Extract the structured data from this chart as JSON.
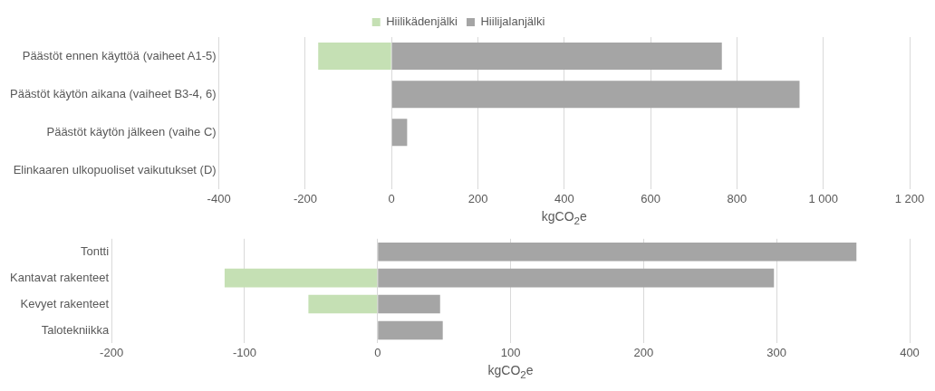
{
  "chart_data": [
    {
      "type": "bar",
      "orientation": "horizontal",
      "stacked": true,
      "categories": [
        "Päästöt ennen käyttöä (vaiheet A1-5)",
        "Päästöt käytön aikana (vaiheet B3-4, 6)",
        "Päästöt käytön jälkeen (vaihe C)",
        "Elinkaaren ulkopuoliset vaikutukset (D)"
      ],
      "series": [
        {
          "name": "Hiilikädenjälki",
          "color": "#c5e0b4",
          "values": [
            -170,
            null,
            null,
            null
          ]
        },
        {
          "name": "Hiilijalanjälki",
          "color": "#a5a5a5",
          "values": [
            765,
            945,
            36,
            null
          ]
        }
      ],
      "xlim": [
        -400,
        1200
      ],
      "xticks": [
        -400,
        -200,
        0,
        200,
        400,
        600,
        800,
        {
          "value": 1000,
          "label": "1 000"
        },
        {
          "value": 1200,
          "label": "1 200"
        }
      ],
      "xlabel": "kgCO$_{2}$e",
      "grid": "x",
      "legend": "top"
    },
    {
      "type": "bar",
      "orientation": "horizontal",
      "stacked": true,
      "categories": [
        "Tontti",
        "Kantavat rakenteet",
        "Kevyet rakenteet",
        "Talotekniikka"
      ],
      "series": [
        {
          "color": "#c5e0b4",
          "values": [
            null,
            -115,
            -52,
            null
          ]
        },
        {
          "color": "#a5a5a5",
          "values": [
            360,
            298,
            47,
            49
          ]
        }
      ],
      "xlim": [
        -200,
        400
      ],
      "xticks": [
        -200,
        -100,
        0,
        100,
        200,
        300,
        400
      ],
      "xlabel": "kgCO$_{2}$e",
      "grid": "x",
      "legend": false
    }
  ]
}
